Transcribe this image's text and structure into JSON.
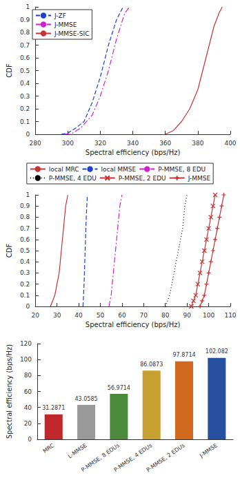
{
  "chart_data": [
    {
      "type": "line",
      "x_label": "Spectral efficiency (bps/Hz)",
      "y_label": "CDF",
      "xlim": [
        280,
        400
      ],
      "xticks": [
        280,
        300,
        320,
        340,
        360,
        380,
        400
      ],
      "ylim": [
        0,
        1
      ],
      "yticks": [
        0,
        0.1,
        0.2,
        0.3,
        0.4,
        0.5,
        0.6,
        0.7,
        0.8,
        0.9,
        1
      ],
      "grid": false,
      "legend": "upper left",
      "series": [
        {
          "name": "J-ZF",
          "color": "#1f3fd0",
          "line_style": "dashed",
          "x": [
            296,
            300,
            305,
            310,
            315,
            320,
            325,
            330,
            334
          ],
          "values": [
            0,
            0.01,
            0.05,
            0.1,
            0.25,
            0.45,
            0.7,
            0.9,
            1
          ]
        },
        {
          "name": "J-MMSE",
          "color": "#d020d0",
          "line_style": "dashdot",
          "x": [
            298,
            303,
            308,
            315,
            320,
            325,
            330,
            335,
            338
          ],
          "values": [
            0,
            0.01,
            0.05,
            0.15,
            0.3,
            0.5,
            0.75,
            0.95,
            1
          ]
        },
        {
          "name": "J-MMSE-SIC",
          "color": "#c83232",
          "line_style": "solid",
          "x": [
            360,
            365,
            370,
            375,
            380,
            383,
            387,
            390,
            393,
            395
          ],
          "values": [
            0,
            0.03,
            0.1,
            0.2,
            0.35,
            0.5,
            0.7,
            0.85,
            0.95,
            1
          ]
        }
      ]
    },
    {
      "type": "line",
      "x_label": "Spectral efficiency (bps/Hz)",
      "y_label": "CDF",
      "xlim": [
        20,
        110
      ],
      "xticks": [
        20,
        30,
        40,
        50,
        60,
        70,
        80,
        90,
        100,
        110
      ],
      "ylim": [
        0,
        1
      ],
      "yticks": [
        0,
        0.1,
        0.2,
        0.3,
        0.4,
        0.5,
        0.6,
        0.7,
        0.8,
        0.9,
        1
      ],
      "grid": false,
      "legend": "top",
      "series": [
        {
          "name": "local MRC",
          "color": "#c83232",
          "line_style": "solid",
          "x": [
            27,
            29,
            31,
            32,
            33,
            34,
            35
          ],
          "values": [
            0,
            0.1,
            0.3,
            0.5,
            0.7,
            0.9,
            1
          ]
        },
        {
          "name": "local MMSE",
          "color": "#1f3fd0",
          "line_style": "dashed",
          "x": [
            42,
            42.5,
            43,
            43.5,
            44
          ],
          "values": [
            0,
            0.2,
            0.5,
            0.8,
            1
          ]
        },
        {
          "name": "P-MMSE, 8 EDU",
          "color": "#d020d0",
          "line_style": "dashdot",
          "x": [
            54,
            55,
            56,
            57,
            58,
            59,
            60
          ],
          "values": [
            0,
            0.1,
            0.3,
            0.5,
            0.7,
            0.9,
            1
          ]
        },
        {
          "name": "P-MMSE, 4 EDU",
          "color": "#000000",
          "line_style": "dotted",
          "x": [
            80,
            82,
            84,
            86,
            88,
            89,
            90
          ],
          "values": [
            0,
            0.1,
            0.3,
            0.5,
            0.7,
            0.9,
            1
          ]
        },
        {
          "name": "P-MMSE, 2 EDU",
          "color": "#c83232",
          "line_style": "solid",
          "marker": "x",
          "x": [
            92,
            93,
            94,
            95,
            96,
            97,
            98,
            99,
            100,
            101,
            102,
            103
          ],
          "values": [
            0,
            0.05,
            0.1,
            0.2,
            0.3,
            0.4,
            0.5,
            0.6,
            0.7,
            0.8,
            0.9,
            1
          ]
        },
        {
          "name": "J-MMSE",
          "color": "#c83232",
          "line_style": "solid",
          "marker": "+",
          "x": [
            96,
            97,
            98,
            99,
            100,
            101,
            102,
            103,
            104,
            105,
            106,
            107
          ],
          "values": [
            0,
            0.05,
            0.1,
            0.2,
            0.3,
            0.4,
            0.5,
            0.6,
            0.7,
            0.8,
            0.9,
            1
          ]
        }
      ]
    },
    {
      "type": "bar",
      "y_label": "Spectral efficiency (bps/Hz)",
      "categories": [
        "MRC",
        "L-MMSE",
        "P-MMSE, 8 EDUs",
        "P-MMSE, 4 EDUs",
        "P-MMSE, 2 EDUs",
        "J-MMSE"
      ],
      "values": [
        31.2871,
        43.0585,
        56.9714,
        86.0873,
        97.8714,
        102.082
      ],
      "colors": [
        "#c0282c",
        "#9a9a9a",
        "#4a8a3a",
        "#c8a030",
        "#d2691e",
        "#2850a0"
      ],
      "ylim": [
        0,
        120
      ],
      "yticks": [
        0,
        20,
        40,
        60,
        80,
        100,
        120
      ],
      "grid": false,
      "data_labels": true
    }
  ]
}
